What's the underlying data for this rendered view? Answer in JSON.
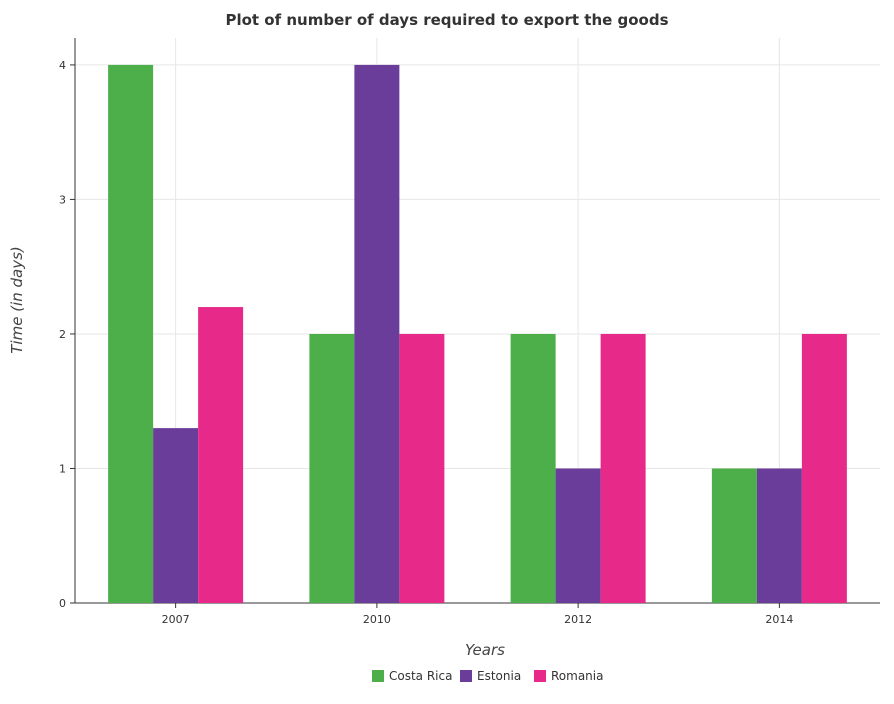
{
  "chart_data": {
    "type": "bar",
    "title": "Plot of number of days required to export the goods",
    "xlabel": "Years",
    "ylabel": "Time (in days)",
    "categories": [
      "2007",
      "2010",
      "2012",
      "2014"
    ],
    "series": [
      {
        "name": "Costa Rica",
        "color": "#4daf4a",
        "values": [
          4,
          2,
          2,
          1
        ]
      },
      {
        "name": "Estonia",
        "color": "#6a3d9a",
        "values": [
          1.3,
          4,
          1,
          1
        ]
      },
      {
        "name": "Romania",
        "color": "#e7298a",
        "values": [
          2.2,
          2,
          2,
          2
        ]
      }
    ],
    "yticks": [
      "0",
      "1",
      "2",
      "3",
      "4"
    ],
    "ylim": [
      0,
      4.2
    ],
    "grid": true,
    "legend": "bottom-center"
  }
}
